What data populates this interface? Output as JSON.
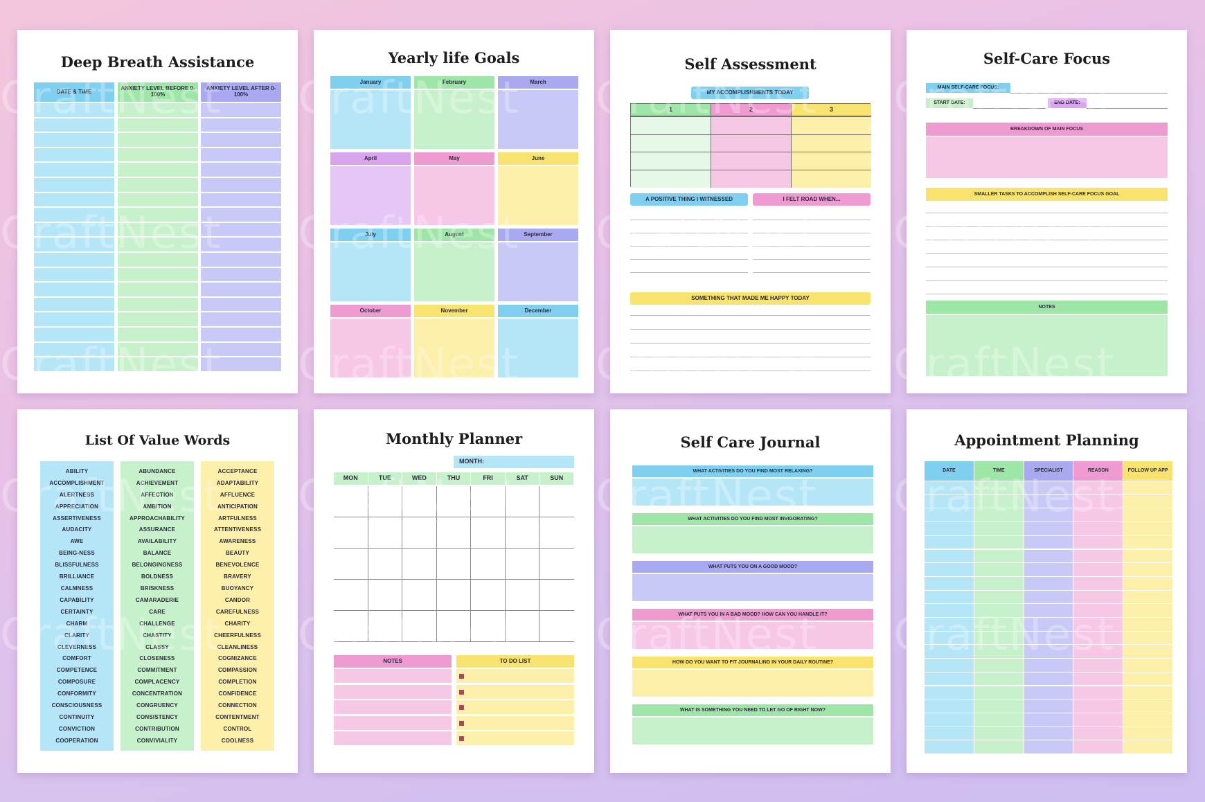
{
  "brand_watermark": "CraftNest",
  "colors": {
    "blue": "#7fd0f0",
    "green": "#9ee6a8",
    "purple": "#a8a9f0",
    "pink": "#f09ad2",
    "yellow": "#f8e36e",
    "lavender": "#d8a4ef"
  },
  "deep_breath": {
    "title": "Deep Breath Assistance",
    "headers": [
      "DATE & TIME",
      "ANXIETY LEVEL BEFORE 0-100%",
      "ANXIETY LEVEL AFTER 0-100%"
    ]
  },
  "yearly_goals": {
    "title": "Yearly life Goals",
    "months": [
      "January",
      "February",
      "March",
      "April",
      "May",
      "June",
      "July",
      "August",
      "September",
      "October",
      "November",
      "December"
    ]
  },
  "self_assessment": {
    "title": "Self Assessment",
    "accomplishments": "MY ACCOMPLISHMENTS TODAY",
    "columns": [
      "1",
      "2",
      "3"
    ],
    "positive": "A POSITIVE THING I WITNESSED",
    "felt": "I FELT ROAD WHEN...",
    "happy": "SOMETHING THAT MADE ME HAPPY TODAY"
  },
  "self_care_focus": {
    "title": "Self-Care Focus",
    "main_focus": "MAIN SELF-CARE FOCUS:",
    "start_date": "START DATE:",
    "end_date": "END DATE:",
    "breakdown": "BREAKDOWN OF MAIN FOCUS",
    "smaller_tasks": "SMALLER TASKS TO ACCOMPLISH SELF-CARE FOCUS GOAL",
    "notes": "NOTES"
  },
  "value_words": {
    "title": "List Of Value Words",
    "col1": [
      "ABILITY",
      "ACCOMPLISHMENT",
      "ALERTNESS",
      "APPRECIATION",
      "ASSERTIVENESS",
      "AUDACITY",
      "AWE",
      "BEING-NESS",
      "BLISSFULNESS",
      "BRILLIANCE",
      "CALMNESS",
      "CAPABILITY",
      "CERTAINTY",
      "CHARM",
      "CLARITY",
      "CLEVERNESS",
      "COMFORT",
      "COMPETENCE",
      "COMPOSURE",
      "CONFORMITY",
      "CONSCIOUSNESS",
      "CONTINUITY",
      "CONVICTION",
      "COOPERATION"
    ],
    "col2": [
      "ABUNDANCE",
      "ACHIEVEMENT",
      "AFFECTION",
      "AMBITION",
      "APPROACHABILITY",
      "ASSURANCE",
      "AVAILABILITY",
      "BALANCE",
      "BELONGINGNESS",
      "BOLDNESS",
      "BRISKNESS",
      "CAMARADERIE",
      "CARE",
      "CHALLENGE",
      "CHASTITY",
      "CLASSY",
      "CLOSENESS",
      "COMMITMENT",
      "COMPLACENCY",
      "CONCENTRATION",
      "CONGRUENCY",
      "CONSISTENCY",
      "CONTRIBUTION",
      "CONVIVIALITY"
    ],
    "col3": [
      "ACCEPTANCE",
      "ADAPTABILITY",
      "AFFLUENCE",
      "ANTICIPATION",
      "ARTFULNESS",
      "ATTENTIVENESS",
      "AWARENESS",
      "BEAUTY",
      "BENEVOLENCE",
      "BRAVERY",
      "BUOYANCY",
      "CANDOR",
      "CAREFULNESS",
      "CHARITY",
      "CHEERFULNESS",
      "CLEANLINESS",
      "COGNIZANCE",
      "COMPASSION",
      "COMPLETION",
      "CONFIDENCE",
      "CONNECTION",
      "CONTENTMENT",
      "CONTROL",
      "COOLNESS"
    ]
  },
  "monthly_planner": {
    "title": "Monthly Planner",
    "month_label": "MONTH:",
    "days": [
      "MON",
      "TUE",
      "WED",
      "THU",
      "FRI",
      "SAT",
      "SUN"
    ],
    "notes": "NOTES",
    "todo": "TO DO LIST"
  },
  "self_care_journal": {
    "title": "Self Care Journal",
    "questions": [
      "WHAT ACTIVITIES DO YOU FIND MOST RELAXING?",
      "WHAT ACTIVITIES DO YOU FIND MOST INVIGORATING?",
      "WHAT PUTS YOU ON A GOOD MOOD?",
      "WHAT PUTS YOU IN A BAD MOOD? HOW CAN YOU HANDLE IT?",
      "HOW DO YOU WANT TO FIT JOURNALING IN YOUR DAILY ROUTINE?",
      "WHAT IS SOMETHING YOU NEED TO LET GO OF RIGHT NOW?"
    ]
  },
  "appointment": {
    "title": "Appointment Planning",
    "headers": [
      "DATE",
      "TIME",
      "SPECIALIST",
      "REASON",
      "FOLLOW UP APP"
    ]
  }
}
